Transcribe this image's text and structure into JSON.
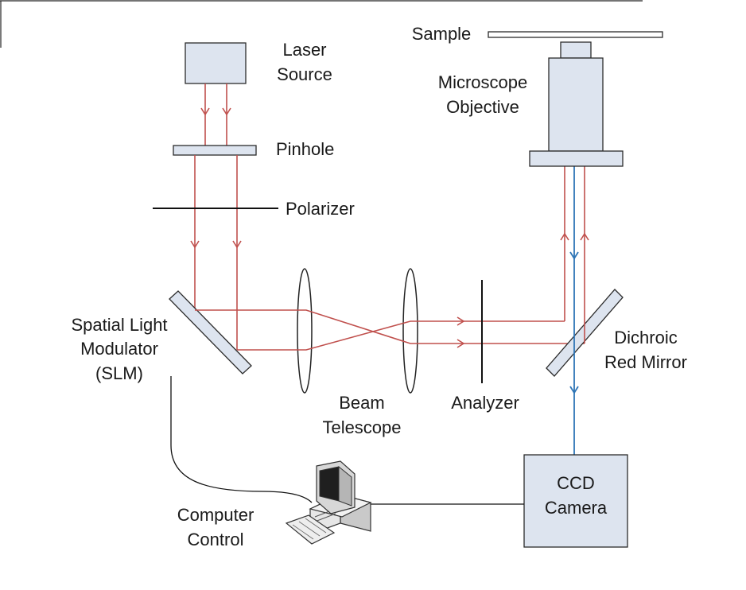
{
  "labels": {
    "laser_line1": "Laser",
    "laser_line2": "Source",
    "pinhole": "Pinhole",
    "polarizer": "Polarizer",
    "slm_line1": "Spatial Light",
    "slm_line2": "Modulator",
    "slm_line3": "(SLM)",
    "telescope_line1": "Beam",
    "telescope_line2": "Telescope",
    "analyzer": "Analyzer",
    "dichroic_line1": "Dichroic",
    "dichroic_line2": "Red Mirror",
    "sample": "Sample",
    "objective_line1": "Microscope",
    "objective_line2": "Objective",
    "ccd_line1": "CCD",
    "ccd_line2": "Camera",
    "computer_line1": "Computer",
    "computer_line2": "Control"
  },
  "colors": {
    "beam_red": "#c0504d",
    "beam_blue": "#2e75b6",
    "component_fill": "#dde4ef",
    "outline": "#2b2b2b"
  }
}
